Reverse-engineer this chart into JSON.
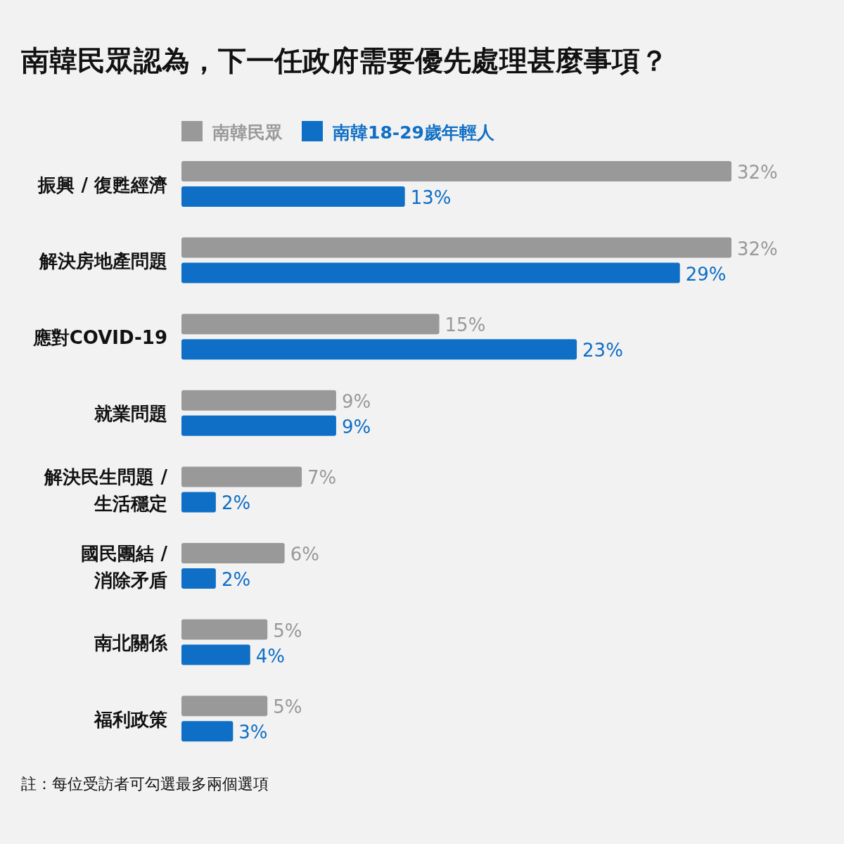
{
  "chart_data": {
    "type": "bar",
    "orientation": "horizontal",
    "title": "南韓民眾認為，下一任政府需要優先處理甚麼事項？",
    "categories": [
      "振興 / 復甦經濟",
      "解決房地產問題",
      "應對COVID-19",
      "就業問題",
      "解決民生問題 /\n生活穩定",
      "國民團結 /\n消除矛盾",
      "南北關係",
      "福利政策"
    ],
    "series": [
      {
        "name": "南韓民眾",
        "color": "#999999",
        "values": [
          32,
          32,
          15,
          9,
          7,
          6,
          5,
          5
        ],
        "value_labels": [
          "32%",
          "32%",
          "15%",
          "9%",
          "7%",
          "6%",
          "5%",
          "5%"
        ]
      },
      {
        "name": "南韓18-29歲年輕人",
        "color": "#0f6fc6",
        "values": [
          13,
          29,
          23,
          9,
          2,
          2,
          4,
          3
        ],
        "value_labels": [
          "13%",
          "29%",
          "23%",
          "9%",
          "2%",
          "2%",
          "4%",
          "3%"
        ]
      }
    ],
    "legend": "top left",
    "annotations": [
      "註：每位受訪者可勾選最多兩個選項"
    ]
  }
}
